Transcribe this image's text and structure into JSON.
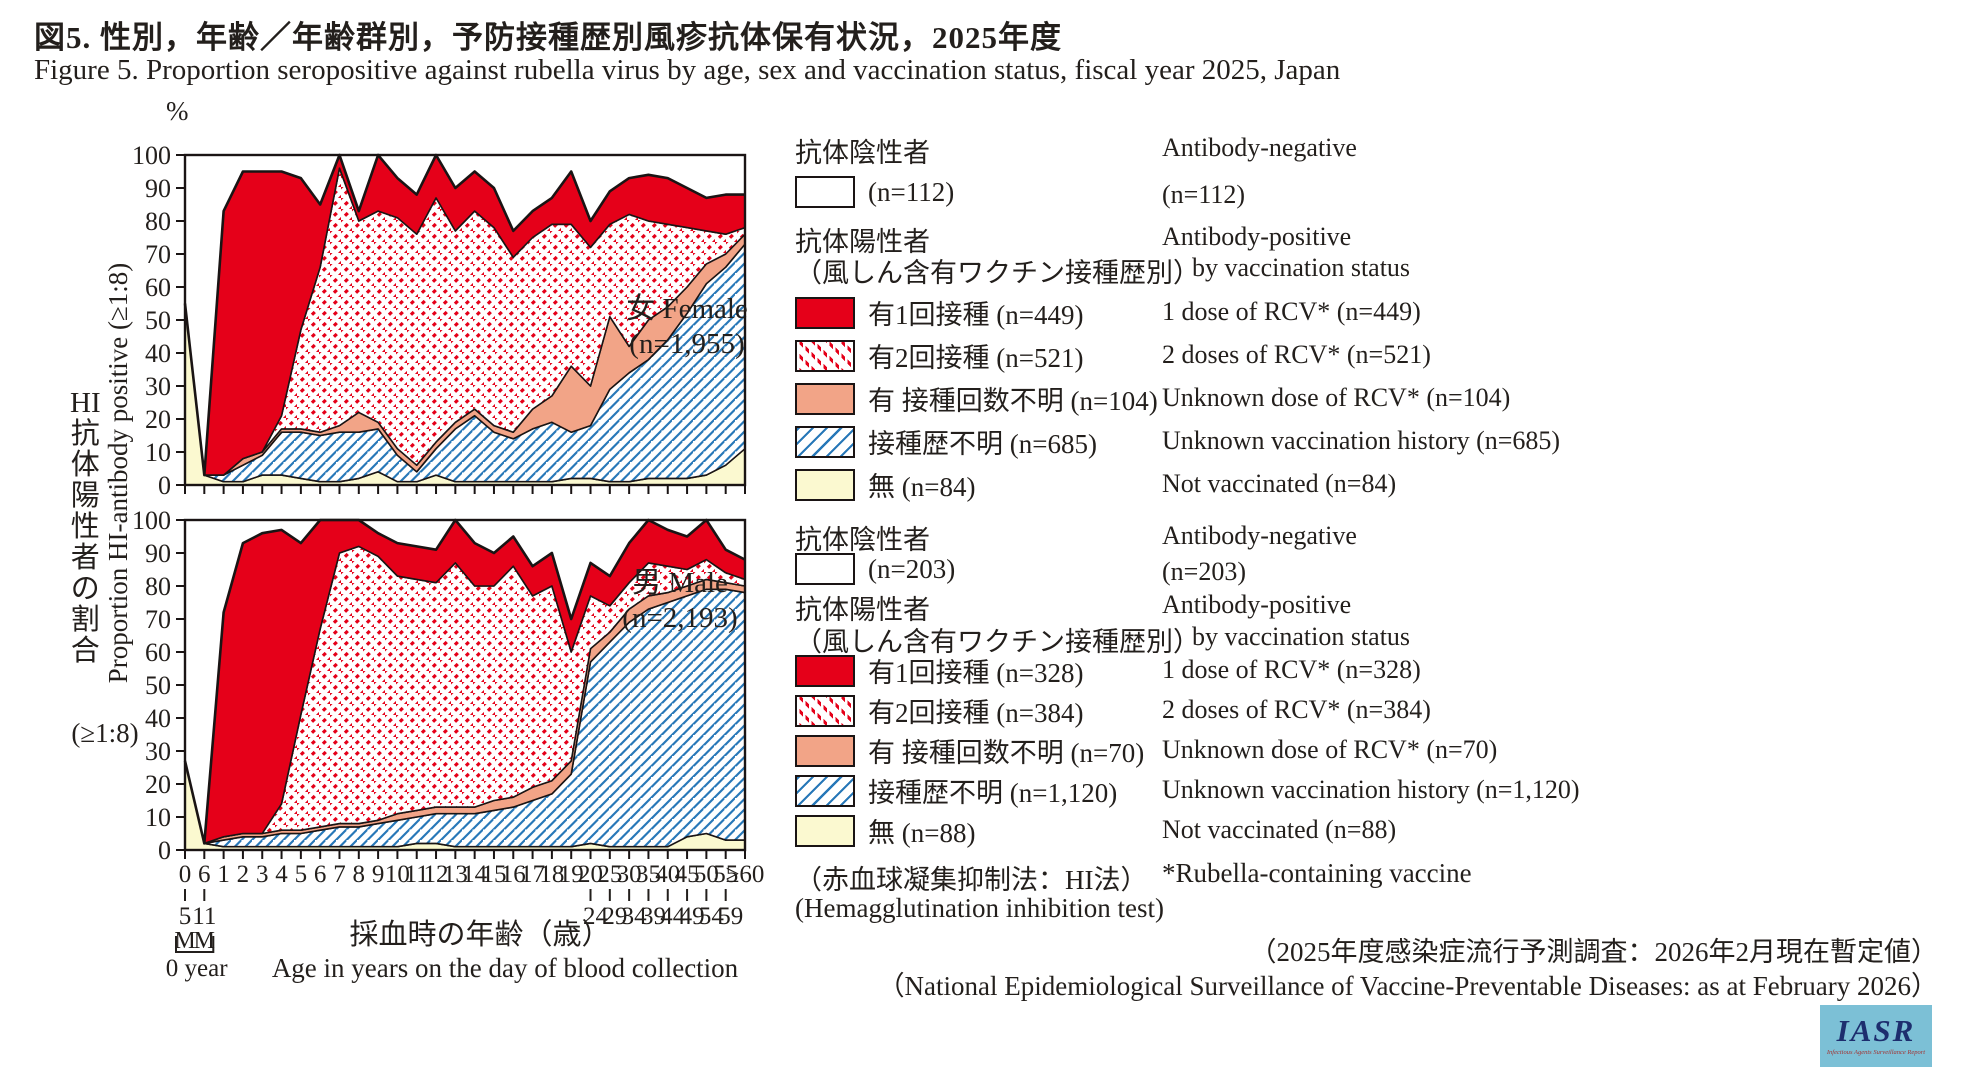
{
  "title": {
    "ja": "図5. 性別，年齢／年齢群別，予防接種歴別風疹抗体保有状況，2025年度",
    "en": "Figure 5. Proportion seropositive against rubella virus by age, sex and vaccination status, fiscal year 2025, Japan"
  },
  "y_axis": {
    "unit": "%",
    "ticks": [
      "100",
      "90",
      "80",
      "70",
      "60",
      "50",
      "40",
      "30",
      "20",
      "10",
      "0"
    ],
    "label_ja_chars": [
      "HI",
      "抗",
      "体",
      "陽",
      "性",
      "者",
      "の",
      "割",
      "合"
    ],
    "label_ratio": "(≥1:8)",
    "label_en": "Proportion HI-antibody positive (≥1:8)"
  },
  "x_axis": {
    "labels": [
      "0",
      "6",
      "1",
      "2",
      "3",
      "4",
      "5",
      "6",
      "7",
      "8",
      "9",
      "10",
      "11",
      "12",
      "13",
      "14",
      "15",
      "16",
      "17",
      "18",
      "19",
      "20",
      "25",
      "30",
      "35",
      "40",
      "45",
      "50",
      "55",
      "≥60"
    ],
    "sub_first": [
      "5",
      "11"
    ],
    "sub_groups": [
      "24",
      "29",
      "34",
      "39",
      "44",
      "49",
      "54",
      "59"
    ],
    "month_marks": [
      "M",
      "M"
    ],
    "zero_year": "0 year",
    "title_ja": "採血時の年齢（歳）",
    "title_en": "Age in years on the day of blood collection"
  },
  "charts_meta": {
    "female": {
      "label": "女 Female",
      "n_label": "(n=1,955)"
    },
    "male": {
      "label": "男 Male",
      "n_label": "(n=2,193)"
    }
  },
  "legends": {
    "female": {
      "neg_title_ja": "抗体陰性者",
      "neg_n_ja": "(n=112)",
      "pos_title_ja": "抗体陽性者",
      "pos_sub_ja": "（風しん含有ワクチン接種歴別）",
      "rows_ja": [
        "有1回接種 (n=449)",
        "有2回接種 (n=521)",
        "有 接種回数不明 (n=104)",
        "接種歴不明 (n=685)",
        "無 (n=84)"
      ],
      "neg_title_en": "Antibody-negative",
      "neg_n_en": "(n=112)",
      "pos_title_en": "Antibody-positive",
      "pos_sub_en": "by vaccination status",
      "rows_en": [
        "1 dose of RCV* (n=449)",
        "2 doses of RCV* (n=521)",
        "Unknown dose of RCV* (n=104)",
        "Unknown vaccination history (n=685)",
        "Not vaccinated (n=84)"
      ]
    },
    "male": {
      "neg_title_ja": "抗体陰性者",
      "neg_n_ja": "(n=203)",
      "pos_title_ja": "抗体陽性者",
      "pos_sub_ja": "（風しん含有ワクチン接種歴別）",
      "rows_ja": [
        "有1回接種 (n=328)",
        "有2回接種 (n=384)",
        "有 接種回数不明 (n=70)",
        "接種歴不明 (n=1,120)",
        "無 (n=88)"
      ],
      "neg_title_en": "Antibody-negative",
      "neg_n_en": "(n=203)",
      "pos_title_en": "Antibody-positive",
      "pos_sub_en": "by vaccination status",
      "rows_en": [
        "1 dose of RCV* (n=328)",
        "2 doses of RCV* (n=384)",
        "Unknown dose of RCV* (n=70)",
        "Unknown vaccination history (n=1,120)",
        "Not vaccinated  (n=88)"
      ]
    }
  },
  "footnotes": {
    "method_ja": "（赤血球凝集抑制法：HI法）",
    "method_en": "(Hemagglutination inhibition test)",
    "rcv_note": "*Rubella-containing vaccine",
    "source_ja": "（2025年度感染症流行予測調査：2026年2月現在暫定値）",
    "source_en": "（National Epidemiological Surveillance of Vaccine-Preventable Diseases: as at February 2026）"
  },
  "logo": {
    "text": "IASR",
    "subtext": "Infectious Agents Surveillance Report"
  },
  "colors": {
    "one_dose": "#e50019",
    "unknown_dose": "#f2a487",
    "not_vaccinated": "#fbf9d0",
    "unknown_history_line": "#2878b8",
    "two_doses_dot": "#e50019",
    "outline": "#1a1414",
    "logo_bg": "#7cc0d6",
    "logo_text": "#1d2e6e"
  },
  "chart_data": {
    "type": "area",
    "stacked": true,
    "ylim": [
      0,
      100
    ],
    "grid": false,
    "x": [
      "0-5M",
      "6-11M",
      "1",
      "2",
      "3",
      "4",
      "5",
      "6",
      "7",
      "8",
      "9",
      "10",
      "11",
      "12",
      "13",
      "14",
      "15",
      "16",
      "17",
      "18",
      "19",
      "20-24",
      "25-29",
      "30-34",
      "35-39",
      "40-44",
      "45-49",
      "50-54",
      "55-59",
      "≥60"
    ],
    "series_order_bottom_to_top": [
      "not_vaccinated",
      "unknown_history",
      "unknown_dose",
      "two_doses",
      "one_dose"
    ],
    "note": "values are percent seropositive; remainder up to 100 is antibody-negative (white)",
    "charts": [
      {
        "name": "Female",
        "n": "1,955",
        "series": {
          "not_vaccinated": [
            55,
            3,
            1,
            1,
            3,
            3,
            2,
            1,
            1,
            2,
            4,
            1,
            1,
            3,
            1,
            1,
            1,
            1,
            1,
            1,
            2,
            2,
            1,
            1,
            2,
            2,
            2,
            3,
            6,
            11
          ],
          "unknown_history": [
            0,
            0,
            2,
            5,
            6,
            13,
            14,
            14,
            15,
            14,
            13,
            8,
            3,
            8,
            16,
            20,
            15,
            13,
            16,
            18,
            14,
            16,
            28,
            33,
            36,
            42,
            50,
            58,
            60,
            62
          ],
          "unknown_dose": [
            0,
            0,
            0,
            2,
            1,
            1,
            1,
            1,
            2,
            6,
            2,
            2,
            2,
            2,
            2,
            2,
            2,
            2,
            6,
            8,
            20,
            12,
            22,
            8,
            12,
            10,
            8,
            6,
            4,
            3
          ],
          "two_doses": [
            0,
            0,
            0,
            0,
            0,
            4,
            30,
            50,
            78,
            58,
            64,
            70,
            70,
            74,
            58,
            60,
            60,
            53,
            52,
            52,
            43,
            42,
            28,
            40,
            30,
            25,
            18,
            10,
            6,
            2
          ],
          "one_dose": [
            0,
            0,
            80,
            87,
            85,
            74,
            46,
            19,
            4,
            3,
            17,
            12,
            12,
            13,
            13,
            12,
            12,
            8,
            8,
            8,
            16,
            8,
            10,
            11,
            14,
            14,
            12,
            10,
            12,
            10
          ]
        }
      },
      {
        "name": "Male",
        "n": "2,193",
        "series": {
          "not_vaccinated": [
            27,
            2,
            1,
            1,
            1,
            1,
            1,
            1,
            1,
            1,
            1,
            1,
            2,
            2,
            1,
            1,
            1,
            1,
            1,
            1,
            1,
            2,
            1,
            1,
            1,
            1,
            4,
            5,
            3,
            3
          ],
          "unknown_history": [
            0,
            0,
            2,
            3,
            3,
            4,
            4,
            5,
            6,
            6,
            7,
            8,
            8,
            9,
            10,
            10,
            11,
            12,
            14,
            16,
            22,
            55,
            62,
            68,
            72,
            74,
            73,
            74,
            76,
            75
          ],
          "unknown_dose": [
            0,
            0,
            1,
            1,
            1,
            1,
            1,
            1,
            1,
            1,
            1,
            2,
            2,
            2,
            2,
            2,
            3,
            3,
            4,
            4,
            4,
            4,
            3,
            4,
            4,
            3,
            3,
            3,
            2,
            2
          ],
          "two_doses": [
            0,
            0,
            0,
            0,
            0,
            8,
            35,
            60,
            82,
            84,
            80,
            72,
            70,
            68,
            74,
            67,
            65,
            70,
            58,
            59,
            33,
            16,
            8,
            8,
            10,
            8,
            5,
            6,
            3,
            2
          ],
          "one_dose": [
            0,
            0,
            68,
            88,
            91,
            83,
            52,
            33,
            10,
            8,
            7,
            10,
            10,
            10,
            13,
            13,
            10,
            9,
            9,
            10,
            10,
            10,
            9,
            12,
            13,
            11,
            10,
            12,
            7,
            6
          ]
        }
      }
    ]
  }
}
